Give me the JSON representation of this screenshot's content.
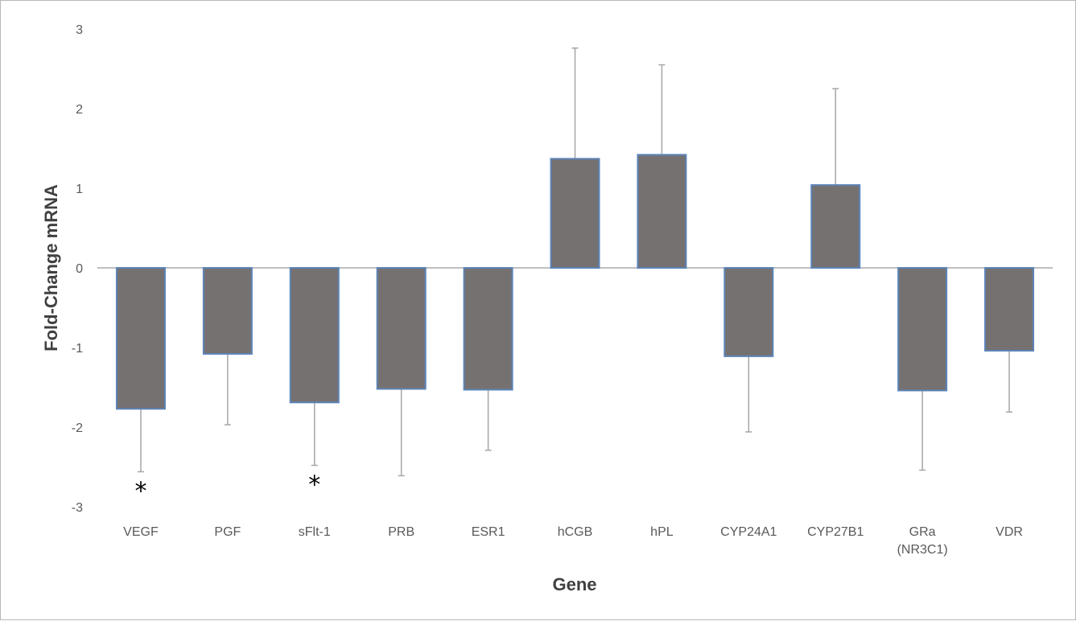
{
  "chart_data": {
    "type": "bar",
    "xlabel": "Gene",
    "ylabel": "Fold-Change mRNA",
    "ylim": [
      -3,
      3
    ],
    "yticks": [
      3,
      2,
      1,
      0,
      -1,
      -2,
      -3
    ],
    "categories": [
      "VEGF",
      "PGF",
      "sFlt-1",
      "PRB",
      "ESR1",
      "hCGB",
      "hPL",
      "CYP24A1",
      "CYP27B1",
      "GRa (NR3C1)",
      "VDR"
    ],
    "category_lines": [
      [
        "VEGF"
      ],
      [
        "PGF"
      ],
      [
        "sFlt-1"
      ],
      [
        "PRB"
      ],
      [
        "ESR1"
      ],
      [
        "hCGB"
      ],
      [
        "hPL"
      ],
      [
        "CYP24A1"
      ],
      [
        "CYP27B1"
      ],
      [
        "GRa",
        "(NR3C1)"
      ],
      [
        "VDR"
      ]
    ],
    "values": [
      -1.77,
      -1.08,
      -1.69,
      -1.52,
      -1.53,
      1.37,
      1.42,
      -1.11,
      1.04,
      -1.54,
      -1.04
    ],
    "error": [
      0.79,
      0.89,
      0.79,
      1.09,
      0.76,
      1.39,
      1.13,
      0.95,
      1.21,
      1.0,
      0.77
    ],
    "significance": [
      "*",
      "",
      "*",
      "",
      "",
      "",
      "",
      "",
      "",
      "",
      ""
    ],
    "grid": false,
    "legend": "none",
    "colors": {
      "bar_fill": "#767171",
      "bar_edge": "#5b84b8",
      "error_bar": "#a6a6a6",
      "zero_line": "#bfbfbf"
    }
  }
}
